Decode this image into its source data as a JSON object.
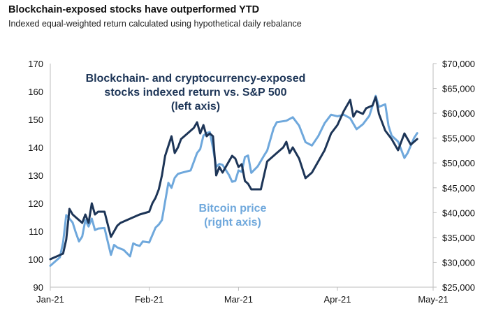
{
  "header": {
    "title": "Blockchain-exposed stocks have outperformed YTD",
    "subtitle": "Indexed equal-weighted return calculated using hypothetical daily rebalance"
  },
  "chart_data": {
    "type": "line",
    "title": "Blockchain-exposed stocks have outperformed YTD",
    "subtitle": "Indexed equal-weighted return calculated using hypothetical daily rebalance",
    "x_ticks": [
      "Jan-21",
      "Feb-21",
      "Mar-21",
      "Apr-21",
      "May-21"
    ],
    "x_range": [
      "2021-01-01",
      "2021-05-01"
    ],
    "left_axis": {
      "range": [
        90,
        170
      ],
      "ticks": [
        "90",
        "100",
        "110",
        "120",
        "130",
        "140",
        "150",
        "160",
        "170"
      ]
    },
    "right_axis": {
      "range": [
        25000,
        70000
      ],
      "ticks": [
        "$25,000",
        "$30,000",
        "$35,000",
        "$40,000",
        "$45,000",
        "$50,000",
        "$55,000",
        "$60,000",
        "$65,000",
        "$70,000"
      ]
    },
    "grid": false,
    "colors": {
      "blockchain": "#1d3557",
      "bitcoin": "#6fa8dc"
    },
    "annotations": {
      "blockchain": [
        "Blockchain- and cryptocurrency-exposed",
        "stocks indexed return vs. S&P 500",
        "(left axis)"
      ],
      "bitcoin": [
        "Bitcoin price",
        "(right axis)"
      ]
    },
    "series": [
      {
        "key": "blockchain",
        "axis": "left",
        "x": [
          "2021-01-01",
          "2021-01-05",
          "2021-01-06",
          "2021-01-07",
          "2021-01-08",
          "2021-01-09",
          "2021-01-11",
          "2021-01-12",
          "2021-01-13",
          "2021-01-14",
          "2021-01-15",
          "2021-01-16",
          "2021-01-18",
          "2021-01-20",
          "2021-01-22",
          "2021-01-23",
          "2021-01-25",
          "2021-01-27",
          "2021-01-29",
          "2021-02-01",
          "2021-02-02",
          "2021-02-03",
          "2021-02-04",
          "2021-02-05",
          "2021-02-06",
          "2021-02-08",
          "2021-02-09",
          "2021-02-10",
          "2021-02-11",
          "2021-02-13",
          "2021-02-15",
          "2021-02-16",
          "2021-02-17",
          "2021-02-18",
          "2021-02-19",
          "2021-02-20",
          "2021-02-21",
          "2021-02-22",
          "2021-02-23",
          "2021-02-24",
          "2021-02-26",
          "2021-02-27",
          "2021-02-28",
          "2021-03-01",
          "2021-03-02",
          "2021-03-03",
          "2021-03-04",
          "2021-03-05",
          "2021-03-08",
          "2021-03-10",
          "2021-03-11",
          "2021-03-13",
          "2021-03-15",
          "2021-03-16",
          "2021-03-17",
          "2021-03-18",
          "2021-03-19",
          "2021-03-20",
          "2021-03-22",
          "2021-03-24",
          "2021-03-26",
          "2021-03-28",
          "2021-03-30",
          "2021-04-01",
          "2021-04-03",
          "2021-04-05",
          "2021-04-06",
          "2021-04-07",
          "2021-04-09",
          "2021-04-10",
          "2021-04-12",
          "2021-04-13",
          "2021-04-14",
          "2021-04-16",
          "2021-04-18",
          "2021-04-20",
          "2021-04-22",
          "2021-04-24",
          "2021-04-26"
        ],
        "values": [
          100,
          102,
          107,
          118,
          116,
          115,
          113,
          116,
          113,
          120,
          116,
          117,
          117,
          108,
          112,
          113,
          114,
          115,
          116,
          117,
          120,
          122,
          125,
          130,
          137,
          144,
          138,
          140,
          143,
          145,
          147,
          149,
          145,
          148,
          144,
          145,
          144,
          130,
          133,
          131,
          135,
          137,
          136,
          133,
          134,
          128,
          127,
          125,
          125,
          135,
          136,
          138,
          140,
          142,
          138,
          140,
          138,
          136,
          129,
          131,
          135,
          139,
          145,
          148,
          153,
          157,
          151,
          153,
          152,
          154,
          155,
          158,
          152,
          146,
          143,
          139,
          145,
          141,
          143
        ]
      },
      {
        "key": "bitcoin",
        "axis": "right",
        "x": [
          "2021-01-01",
          "2021-01-04",
          "2021-01-05",
          "2021-01-06",
          "2021-01-07",
          "2021-01-08",
          "2021-01-09",
          "2021-01-10",
          "2021-01-11",
          "2021-01-12",
          "2021-01-13",
          "2021-01-14",
          "2021-01-15",
          "2021-01-16",
          "2021-01-18",
          "2021-01-20",
          "2021-01-21",
          "2021-01-22",
          "2021-01-24",
          "2021-01-26",
          "2021-01-27",
          "2021-01-28",
          "2021-01-29",
          "2021-01-30",
          "2021-02-01",
          "2021-02-03",
          "2021-02-04",
          "2021-02-05",
          "2021-02-07",
          "2021-02-08",
          "2021-02-09",
          "2021-02-10",
          "2021-02-11",
          "2021-02-14",
          "2021-02-16",
          "2021-02-17",
          "2021-02-18",
          "2021-02-19",
          "2021-02-20",
          "2021-02-21",
          "2021-02-22",
          "2021-02-23",
          "2021-02-24",
          "2021-02-26",
          "2021-02-27",
          "2021-02-28",
          "2021-03-01",
          "2021-03-02",
          "2021-03-03",
          "2021-03-04",
          "2021-03-05",
          "2021-03-07",
          "2021-03-09",
          "2021-03-10",
          "2021-03-12",
          "2021-03-13",
          "2021-03-14",
          "2021-03-16",
          "2021-03-18",
          "2021-03-20",
          "2021-03-22",
          "2021-03-24",
          "2021-03-26",
          "2021-03-28",
          "2021-03-30",
          "2021-04-01",
          "2021-04-03",
          "2021-04-05",
          "2021-04-07",
          "2021-04-09",
          "2021-04-11",
          "2021-04-13",
          "2021-04-14",
          "2021-04-16",
          "2021-04-17",
          "2021-04-18",
          "2021-04-20",
          "2021-04-22",
          "2021-04-23",
          "2021-04-25",
          "2021-04-26"
        ],
        "values": [
          29300,
          31000,
          34000,
          39500,
          38800,
          38000,
          36000,
          34200,
          35200,
          38500,
          37200,
          38800,
          36500,
          36800,
          36900,
          31500,
          33500,
          33000,
          32500,
          31200,
          33800,
          33500,
          33300,
          34200,
          34000,
          37000,
          37600,
          38500,
          46000,
          45000,
          47000,
          47800,
          48000,
          48500,
          52000,
          52800,
          55500,
          56000,
          56200,
          53000,
          49200,
          49800,
          49600,
          47600,
          46200,
          46400,
          48500,
          48200,
          51200,
          51500,
          48000,
          49300,
          51500,
          52500,
          57000,
          58200,
          58300,
          58500,
          59200,
          57500,
          54200,
          53500,
          55400,
          58000,
          59700,
          59400,
          59700,
          59000,
          56800,
          57800,
          59500,
          63500,
          61300,
          61800,
          57500,
          55500,
          54300,
          51000,
          52000,
          55000,
          56000
        ]
      }
    ]
  }
}
